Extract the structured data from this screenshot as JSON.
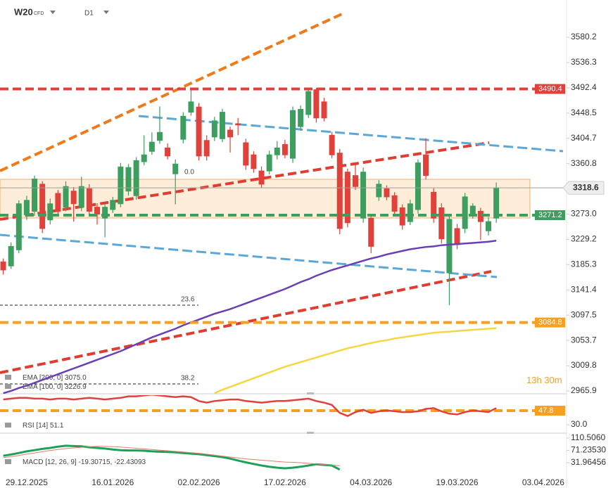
{
  "header": {
    "symbol": "W20",
    "instrument_type": "CFD",
    "timeframe": "D1",
    "countdown_hours": "13h",
    "countdown_minutes": "30m"
  },
  "chart_data": [
    {
      "type": "candlestick",
      "up_color": "#3d9e5f",
      "down_color": "#e0413a",
      "xlim": [
        -0.41,
        71.53
      ],
      "xticks": [
        {
          "value": 3,
          "label": "29.12.2025"
        },
        {
          "value": 14,
          "label": "16.01.2026"
        },
        {
          "value": 25,
          "label": "02.02.2026"
        },
        {
          "value": 36,
          "label": "17.02.2026"
        },
        {
          "value": 47,
          "label": "04.03.2026"
        },
        {
          "value": 58,
          "label": "19.03.2026"
        },
        {
          "value": 69,
          "label": "03.04.2026"
        }
      ],
      "ylim": [
        2961,
        3644.9
      ],
      "yticks": [
        3580.2,
        3536.3,
        3492.4,
        3448.5,
        3404.7,
        3360.8,
        {
          "value": 3273,
          "label": "3273.0"
        },
        3229.2,
        3185.3,
        3141.4,
        3097.5,
        3053.7,
        3009.8,
        2965.9
      ],
      "open": [
        3190,
        3183,
        3211,
        3272,
        3278,
        3325,
        3263,
        3309,
        3285,
        3313,
        3285,
        3317,
        3285,
        3266,
        3281,
        3291,
        3313,
        3305,
        3364,
        3382,
        3401,
        3388,
        3343,
        3403,
        3450,
        3459,
        3401,
        3407,
        3404,
        3419,
        3430,
        3397,
        3376,
        3348,
        3348,
        3376,
        3394,
        3370,
        3425,
        3446,
        3489,
        3468,
        3410,
        3379,
        3346,
        3340,
        3266,
        3266,
        3303,
        3317,
        3305,
        3284,
        3260,
        3281,
        3376,
        3311,
        3284,
        3171,
        3248,
        3248,
        3273,
        3278,
        3244,
        3266
      ],
      "high": [
        3196,
        3224,
        3297,
        3305,
        3340,
        3330,
        3300,
        3315,
        3330,
        3320,
        3338,
        3325,
        3292,
        3292,
        3303,
        3362,
        3360,
        3372,
        3410,
        3415,
        3460,
        3396,
        3368,
        3450,
        3490,
        3466,
        3410,
        3442,
        3456,
        3425,
        3440,
        3404,
        3382,
        3356,
        3383,
        3400,
        3402,
        3460,
        3462,
        3490,
        3492,
        3475,
        3416,
        3386,
        3352,
        3360,
        3354,
        3272,
        3332,
        3323,
        3311,
        3290,
        3298,
        3368,
        3405,
        3318,
        3292,
        3270,
        3256,
        3310,
        3292,
        3284,
        3268,
        3328
      ],
      "low": [
        3168,
        3178,
        3205,
        3263,
        3270,
        3240,
        3255,
        3270,
        3278,
        3260,
        3278,
        3270,
        3255,
        3233,
        3275,
        3285,
        3305,
        3298,
        3358,
        3376,
        3395,
        3368,
        3290,
        3396,
        3444,
        3366,
        3366,
        3400,
        3398,
        3380,
        3410,
        3350,
        3345,
        3318,
        3342,
        3368,
        3370,
        3362,
        3418,
        3440,
        3432,
        3434,
        3370,
        3238,
        3250,
        3315,
        3258,
        3205,
        3296,
        3297,
        3272,
        3246,
        3254,
        3274,
        3333,
        3258,
        3222,
        3115,
        3212,
        3240,
        3265,
        3228,
        3236,
        3258
      ],
      "close": [
        3176,
        3217,
        3291,
        3297,
        3334,
        3248,
        3291,
        3278,
        3321,
        3291,
        3321,
        3278,
        3273,
        3285,
        3297,
        3355,
        3354,
        3366,
        3376,
        3398,
        3415,
        3374,
        3360,
        3443,
        3468,
        3374,
        3374,
        3435,
        3450,
        3407,
        3428,
        3358,
        3352,
        3325,
        3376,
        3388,
        3376,
        3453,
        3455,
        3486,
        3440,
        3440,
        3376,
        3248,
        3258,
        3321,
        3346,
        3217,
        3325,
        3303,
        3278,
        3254,
        3291,
        3362,
        3340,
        3266,
        3230,
        3264,
        3220,
        3303,
        3287,
        3260,
        3260,
        3318.6
      ],
      "series": [
        {
          "name": "EMA [200, 0]",
          "color": "#f7d640",
          "legend_value": "3075.0",
          "values": [
            null,
            null,
            null,
            null,
            null,
            null,
            null,
            null,
            null,
            null,
            null,
            null,
            null,
            null,
            null,
            null,
            null,
            null,
            null,
            null,
            null,
            null,
            null,
            null,
            null,
            null,
            null,
            2962,
            2968,
            2973,
            2978,
            2983,
            2988,
            2993,
            2998,
            3003,
            3008,
            3012,
            3016,
            3020,
            3024,
            3028,
            3032,
            3036,
            3040,
            3043,
            3046,
            3049,
            3052,
            3054,
            3057,
            3059,
            3061,
            3063,
            3065,
            3067,
            3068,
            3069,
            3070,
            3071,
            3072,
            3073,
            3074,
            3075
          ]
        },
        {
          "name": "EMA [100, 0]",
          "color": "#6a3fb5",
          "values": [
            2962,
            2966,
            2971,
            2975,
            2980,
            2985,
            2990,
            2995,
            3000,
            3005,
            3010,
            3015,
            3020,
            3025,
            3030,
            3035,
            3041,
            3047,
            3053,
            3059,
            3064,
            3069,
            3074,
            3080,
            3085,
            3090,
            3095,
            3100,
            3104,
            3108,
            3113,
            3118,
            3123,
            3128,
            3133,
            3138,
            3143,
            3149,
            3155,
            3160,
            3166,
            3171,
            3176,
            3180,
            3184,
            3188,
            3192,
            3196,
            3199,
            3203,
            3206,
            3209,
            3212,
            3214,
            3216,
            3217,
            3219,
            3220,
            3221,
            3222,
            3223,
            3224,
            3225,
            3226.9
          ]
        }
      ],
      "levels": [
        {
          "value": 3490.4,
          "color": "#e0413a",
          "style": "dashed"
        },
        {
          "value": 3318.6,
          "color": "#9e9e9e",
          "style": "solid"
        },
        {
          "value": 3271.2,
          "color": "#3d9e5f",
          "style": "dashed"
        },
        {
          "value": 3084.8,
          "color": "#f5a020",
          "style": "dashed"
        }
      ],
      "fib_labels": [
        "0.0",
        "23.6",
        "38.2"
      ]
    },
    {
      "type": "line",
      "title": "RSI [14]",
      "ylim": [
        20.2,
        67.4
      ],
      "yticks": [
        {
          "value": 30,
          "label": "30.0"
        }
      ],
      "levels": [
        {
          "value": 47.8,
          "color": "#f5a020",
          "style": "dashed"
        }
      ],
      "series": [
        {
          "name": "RSI",
          "color": "#e0413a",
          "values": [
            62,
            63,
            64,
            64,
            63,
            63,
            62,
            63,
            63,
            62,
            63,
            64,
            63,
            62,
            63,
            64,
            66,
            66,
            67,
            68,
            67,
            66,
            65,
            66,
            65,
            60,
            58,
            60,
            61,
            62,
            62,
            60,
            59,
            58,
            59,
            60,
            60,
            61,
            62,
            63,
            60,
            58,
            55,
            45,
            41,
            46,
            49,
            45,
            47,
            48,
            47,
            46,
            46,
            47,
            50,
            51,
            47,
            44,
            43,
            46,
            48,
            47,
            46,
            51.1
          ]
        }
      ]
    },
    {
      "type": "line",
      "title": "MACD [12, 26, 9]",
      "legend_values": "-19.30715, -22.43093",
      "ylim": [
        -17.4,
        121.7
      ],
      "yticks": [
        {
          "value": 110.506,
          "label": "110.5060"
        },
        {
          "value": 71.2353,
          "label": "71.23530"
        },
        31.96456
      ],
      "series": [
        {
          "name": "MACD",
          "color": "#1fa05a",
          "width": 3,
          "values": [
            54,
            58,
            63,
            68,
            72,
            76,
            79,
            83,
            86,
            85,
            84,
            81,
            79,
            77,
            74,
            72,
            71,
            71,
            70,
            68,
            67,
            66,
            65,
            63,
            61,
            59,
            56,
            53,
            50,
            45,
            39,
            33,
            28,
            23,
            19,
            16,
            14,
            16,
            19,
            23,
            27,
            25,
            23,
            10,
            null,
            null,
            null,
            null,
            null,
            null,
            null,
            null,
            null,
            null,
            null,
            null,
            null,
            null,
            null,
            null,
            null,
            null,
            null,
            null
          ]
        },
        {
          "name": "Signal",
          "color": "#e37c6b",
          "width": 1,
          "values": [
            48,
            51,
            55,
            59,
            63,
            67,
            71,
            74,
            77,
            79,
            81,
            83,
            84,
            84,
            83,
            82,
            80,
            78,
            76,
            74,
            72,
            70,
            68,
            66,
            64,
            62,
            59,
            56,
            53,
            50,
            47,
            44,
            42,
            40,
            38,
            36,
            34,
            33,
            32,
            30,
            28,
            26,
            24,
            22,
            null,
            null,
            null,
            null,
            null,
            null,
            null,
            null,
            null,
            null,
            null,
            null,
            null,
            null,
            null,
            null,
            null,
            null,
            null,
            null
          ]
        }
      ]
    }
  ]
}
